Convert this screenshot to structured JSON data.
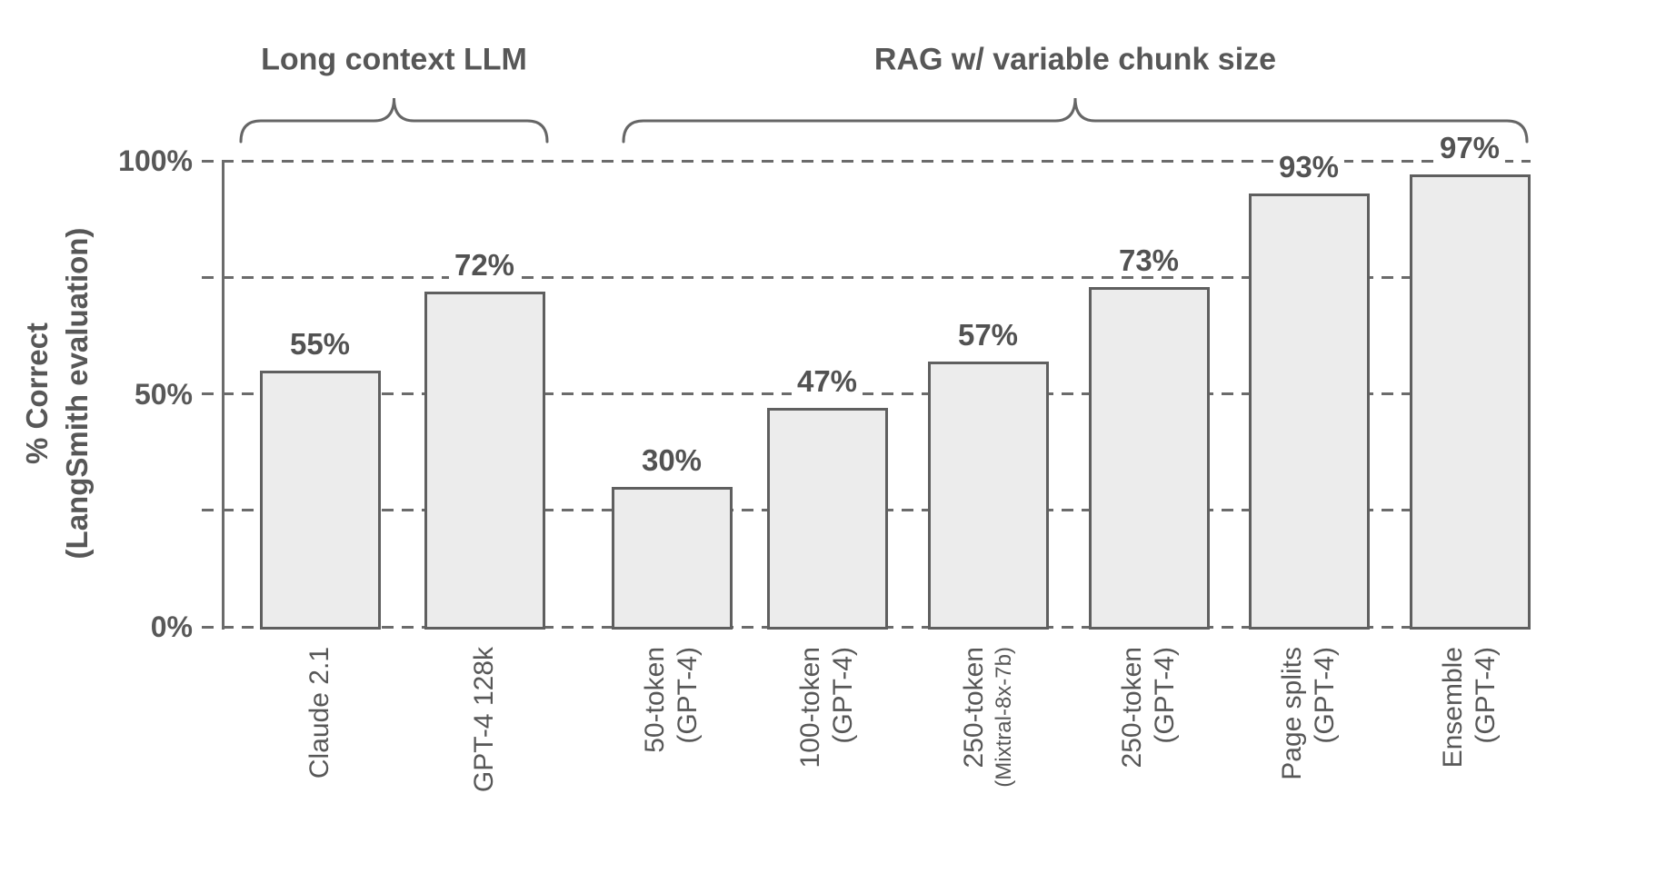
{
  "chart_data": {
    "type": "bar",
    "title": "",
    "ylabel_line1": "% Correct",
    "ylabel_line2": "(LangSmith evaluation)",
    "ylim": [
      0,
      100
    ],
    "grid": "horizontal dashed lines at 0/25/50/75/100, legend none",
    "y_ticks": [
      {
        "percent": 100,
        "label": "100%"
      },
      {
        "percent": 50,
        "label": "50%"
      },
      {
        "percent": 0,
        "label": "0%"
      }
    ],
    "gridlines_percent": [
      0,
      25,
      50,
      75,
      100
    ],
    "bars": [
      {
        "axis_label_lines": [
          "Claude 2.1"
        ],
        "value": 55,
        "value_label": "55%"
      },
      {
        "axis_label_lines": [
          "GPT-4 128k"
        ],
        "value": 72,
        "value_label": "72%"
      },
      {
        "axis_label_lines": [
          "50-token",
          "(GPT-4)"
        ],
        "value": 30,
        "value_label": "30%"
      },
      {
        "axis_label_lines": [
          "100-token",
          "(GPT-4)"
        ],
        "value": 47,
        "value_label": "47%"
      },
      {
        "axis_label_lines": [
          "250-token",
          "(Mixtral-8x-7b)"
        ],
        "value": 57,
        "value_label": "57%",
        "small_line2": true
      },
      {
        "axis_label_lines": [
          "250-token",
          "(GPT-4)"
        ],
        "value": 73,
        "value_label": "73%"
      },
      {
        "axis_label_lines": [
          "Page splits",
          "(GPT-4)"
        ],
        "value": 93,
        "value_label": "93%"
      },
      {
        "axis_label_lines": [
          "Ensemble",
          "(GPT-4)"
        ],
        "value": 97,
        "value_label": "97%"
      }
    ],
    "groups": [
      {
        "label": "Long context LLM",
        "first_bar": 0,
        "last_bar": 1
      },
      {
        "label": "RAG w/ variable chunk size",
        "first_bar": 2,
        "last_bar": 7
      }
    ],
    "colors": {
      "bar_fill": "#ececec",
      "bar_border": "#5f5f5f",
      "gridline": "#6b6b6b",
      "text": "#575757",
      "background": "#ffffff"
    }
  }
}
